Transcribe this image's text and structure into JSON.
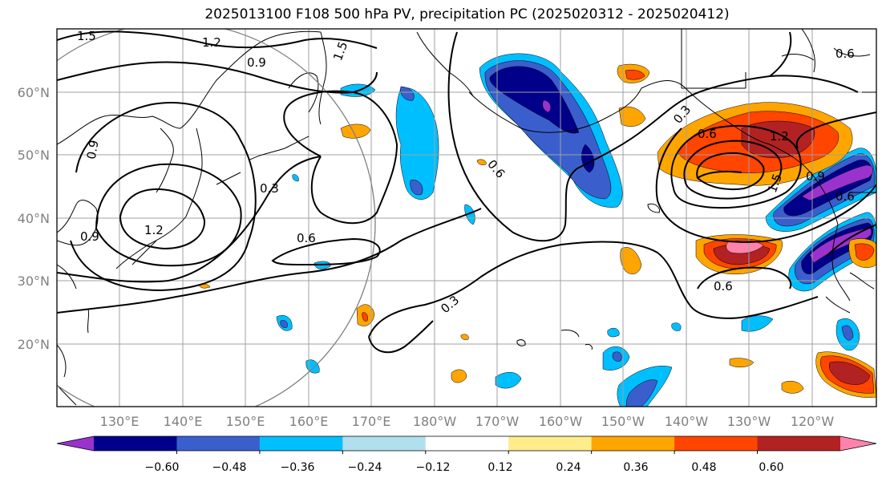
{
  "title": "2025013100 F108 500 hPa PV, precipitation PC (2025020312 - 2025020412)",
  "lat_labels": [
    "60°N",
    "50°N",
    "40°N",
    "30°N",
    "20°N"
  ],
  "lon_labels": [
    "130°E",
    "140°E",
    "150°E",
    "160°E",
    "170°E",
    "180°W",
    "170°W",
    "160°W",
    "150°W",
    "140°W",
    "130°W",
    "120°W"
  ],
  "colorbar": {
    "ticks": [
      "−0.60",
      "−0.48",
      "−0.36",
      "−0.24",
      "−0.12",
      "0.12",
      "0.24",
      "0.36",
      "0.48",
      "0.60"
    ],
    "colors": [
      "#9a32cd",
      "#00008b",
      "#3a5fcd",
      "#00bfff",
      "#b2dfee",
      "#ffffff",
      "#ffec8b",
      "#ffa500",
      "#ff4500",
      "#b22222",
      "#ff82ab"
    ]
  },
  "contour_labels": [
    "1.5",
    "1.2",
    "0.9",
    "1.5",
    "0.6",
    "0.9",
    "0.3",
    "1.2",
    "0.9",
    "0.6",
    "0.6",
    "0.3",
    "0.6",
    "1.2",
    "1.5",
    "0.9",
    "0.6",
    "0.3",
    "0.6"
  ],
  "coastline_color": "#000000"
}
